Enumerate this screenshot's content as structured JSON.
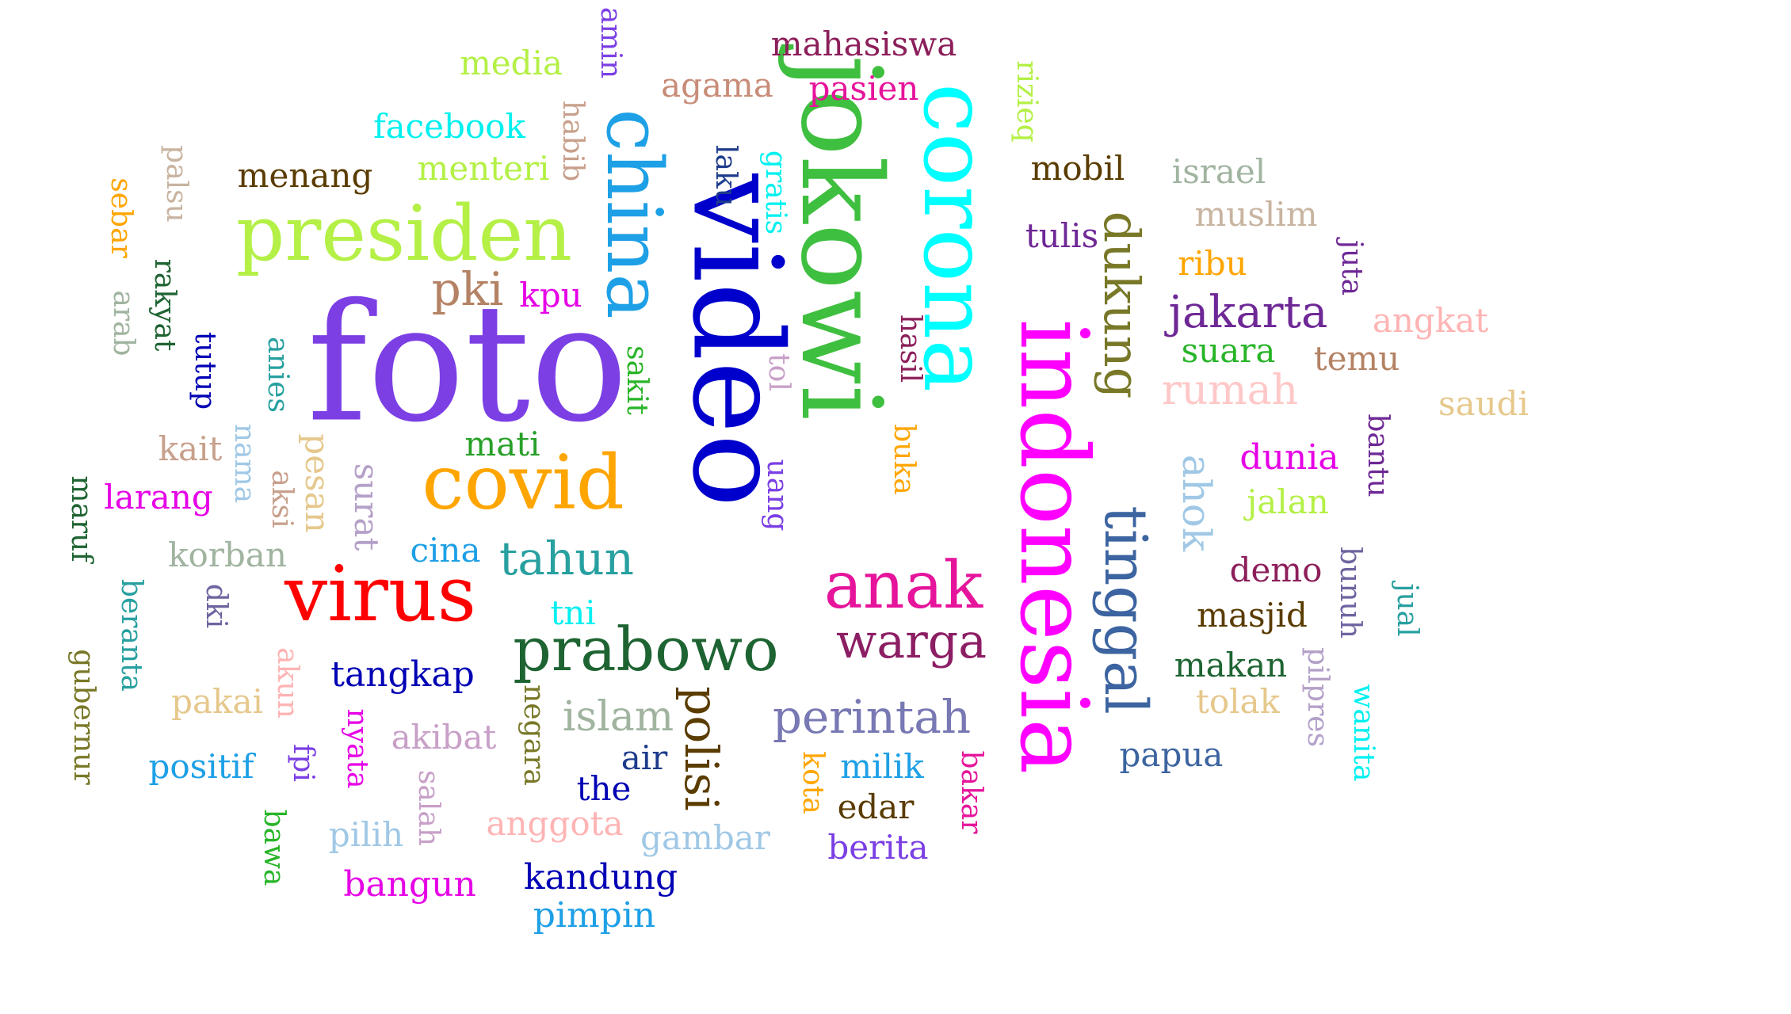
{
  "words": [
    {
      "text": "jokowi",
      "color": "#3fbf3f"
    },
    {
      "text": "video",
      "color": "#0000cc"
    },
    {
      "text": "foto",
      "color": "#7b3fe4"
    },
    {
      "text": "corona",
      "color": "#00ffff"
    },
    {
      "text": "indonesia",
      "color": "#ff00ff"
    },
    {
      "text": "presiden",
      "color": "#b4f046"
    },
    {
      "text": "china",
      "color": "#1ea0e6"
    },
    {
      "text": "covid",
      "color": "#ffa500"
    },
    {
      "text": "virus",
      "color": "#ff0000"
    },
    {
      "text": "prabowo",
      "color": "#1e6432"
    },
    {
      "text": "anak",
      "color": "#e6149b"
    },
    {
      "text": "tinggal",
      "color": "#3c64a0"
    },
    {
      "text": "dukung",
      "color": "#787828"
    },
    {
      "text": "jakarta",
      "color": "#6e2896"
    },
    {
      "text": "warga",
      "color": "#8c1e64"
    },
    {
      "text": "perintah",
      "color": "#7878b4"
    },
    {
      "text": "tahun",
      "color": "#28a0a0"
    },
    {
      "text": "pki",
      "color": "#b48264"
    },
    {
      "text": "polisi",
      "color": "#5a3c00"
    },
    {
      "text": "mahasiswa",
      "color": "#8c1e5a"
    },
    {
      "text": "media",
      "color": "#b4f046"
    },
    {
      "text": "agama",
      "color": "#c88c78"
    },
    {
      "text": "pasien",
      "color": "#e6149b"
    },
    {
      "text": "facebook",
      "color": "#00f0f0"
    },
    {
      "text": "menang",
      "color": "#5a3c00"
    },
    {
      "text": "menteri",
      "color": "#b4f046"
    },
    {
      "text": "mobil",
      "color": "#5a3c00"
    },
    {
      "text": "israel",
      "color": "#a0b4a0"
    },
    {
      "text": "muslim",
      "color": "#c8b4a0"
    },
    {
      "text": "tulis",
      "color": "#6e2896"
    },
    {
      "text": "ribu",
      "color": "#ffa500"
    },
    {
      "text": "angkat",
      "color": "#ffb4b4"
    },
    {
      "text": "suara",
      "color": "#28b428"
    },
    {
      "text": "temu",
      "color": "#b48264"
    },
    {
      "text": "rumah",
      "color": "#ffc8c8"
    },
    {
      "text": "saudi",
      "color": "#e6c88c"
    },
    {
      "text": "dunia",
      "color": "#e600e6"
    },
    {
      "text": "jalan",
      "color": "#b4f046"
    },
    {
      "text": "demo",
      "color": "#8c1e5a"
    },
    {
      "text": "masjid",
      "color": "#5a3c00"
    },
    {
      "text": "makan",
      "color": "#1e6432"
    },
    {
      "text": "tolak",
      "color": "#e6c88c"
    },
    {
      "text": "papua",
      "color": "#3c64a0"
    },
    {
      "text": "kpu",
      "color": "#e600e6"
    },
    {
      "text": "mati",
      "color": "#28a028"
    },
    {
      "text": "kait",
      "color": "#c8a08c"
    },
    {
      "text": "larang",
      "color": "#e600e6"
    },
    {
      "text": "korban",
      "color": "#a0b4a0"
    },
    {
      "text": "cina",
      "color": "#1ea0e6"
    },
    {
      "text": "tni",
      "color": "#00f0f0"
    },
    {
      "text": "tangkap",
      "color": "#0000b4"
    },
    {
      "text": "pakai",
      "color": "#e6c88c"
    },
    {
      "text": "positif",
      "color": "#1ea0e6"
    },
    {
      "text": "akibat",
      "color": "#c8a0c8"
    },
    {
      "text": "islam",
      "color": "#a0b4a0"
    },
    {
      "text": "air",
      "color": "#1e3c8c"
    },
    {
      "text": "the",
      "color": "#0000b4"
    },
    {
      "text": "pilih",
      "color": "#a0c8e6"
    },
    {
      "text": "anggota",
      "color": "#ffb4b4"
    },
    {
      "text": "gambar",
      "color": "#a0c8e6"
    },
    {
      "text": "bangun",
      "color": "#e600e6"
    },
    {
      "text": "kandung",
      "color": "#0000b4"
    },
    {
      "text": "pimpin",
      "color": "#1ea0e6"
    },
    {
      "text": "milik",
      "color": "#1ea0e6"
    },
    {
      "text": "edar",
      "color": "#5a3c00"
    },
    {
      "text": "berita",
      "color": "#7b3fe4"
    },
    {
      "text": "amin",
      "color": "#7b3fe4"
    },
    {
      "text": "habib",
      "color": "#c8a08c"
    },
    {
      "text": "rizieq",
      "color": "#b4f046"
    },
    {
      "text": "palsu",
      "color": "#c8b4a0"
    },
    {
      "text": "sebar",
      "color": "#ffa500"
    },
    {
      "text": "rakyat",
      "color": "#1e6432"
    },
    {
      "text": "arab",
      "color": "#a0b4a0"
    },
    {
      "text": "tutup",
      "color": "#0000b4"
    },
    {
      "text": "anies",
      "color": "#28a0a0"
    },
    {
      "text": "nama",
      "color": "#a0c8e6"
    },
    {
      "text": "aksi",
      "color": "#c8a08c"
    },
    {
      "text": "pesan",
      "color": "#e6c88c"
    },
    {
      "text": "surat",
      "color": "#b4a0c8"
    },
    {
      "text": "maruf",
      "color": "#1e6432"
    },
    {
      "text": "beranta",
      "color": "#28a0a0"
    },
    {
      "text": "dki",
      "color": "#6e64a0"
    },
    {
      "text": "gubernur",
      "color": "#787828"
    },
    {
      "text": "akun",
      "color": "#ffb4b4"
    },
    {
      "text": "fpi",
      "color": "#7b3fe4"
    },
    {
      "text": "nyata",
      "color": "#e600e6"
    },
    {
      "text": "salah",
      "color": "#c8a0c8"
    },
    {
      "text": "bawa",
      "color": "#28b428"
    },
    {
      "text": "negara",
      "color": "#787828"
    },
    {
      "text": "laku",
      "color": "#1e3c8c"
    },
    {
      "text": "gratis",
      "color": "#00f0f0"
    },
    {
      "text": "sakit",
      "color": "#28b428"
    },
    {
      "text": "tol",
      "color": "#c8a0c8"
    },
    {
      "text": "uang",
      "color": "#7b3fe4"
    },
    {
      "text": "hasil",
      "color": "#8c1e5a"
    },
    {
      "text": "buka",
      "color": "#ffa500"
    },
    {
      "text": "kota",
      "color": "#ffa500"
    },
    {
      "text": "bakar",
      "color": "#e6149b"
    },
    {
      "text": "ahok",
      "color": "#a0c8e6"
    },
    {
      "text": "juta",
      "color": "#6e2896"
    },
    {
      "text": "bantu",
      "color": "#6e2896"
    },
    {
      "text": "bunuh",
      "color": "#6e64a0"
    },
    {
      "text": "jual",
      "color": "#28a0a0"
    },
    {
      "text": "pilpres",
      "color": "#b4a0c8"
    },
    {
      "text": "wanita",
      "color": "#00f0f0"
    }
  ]
}
